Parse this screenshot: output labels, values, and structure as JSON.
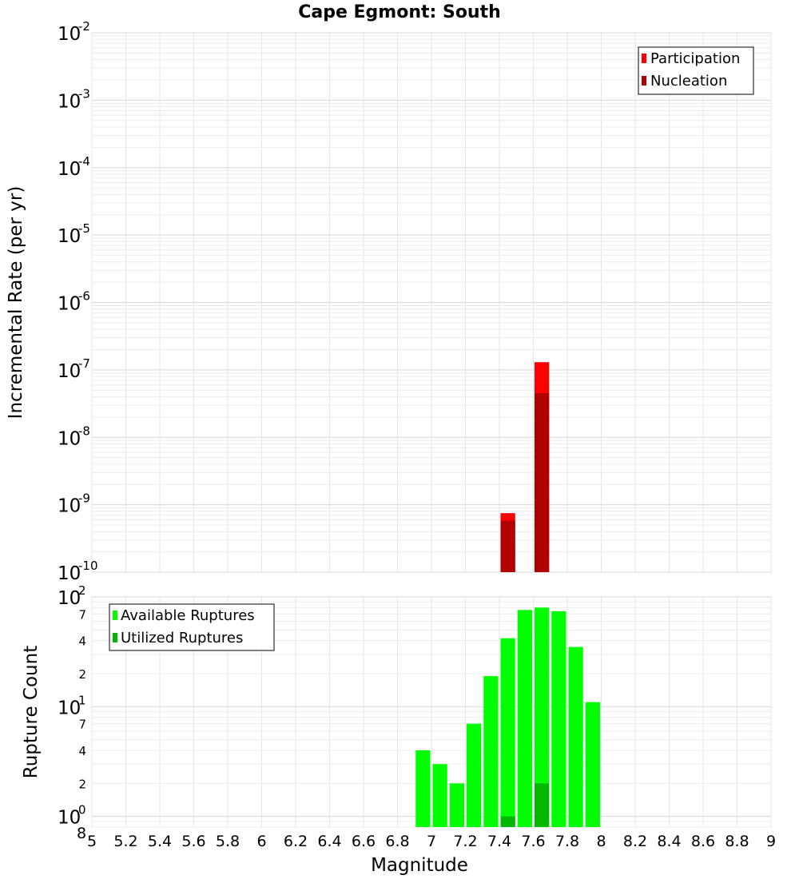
{
  "chart_data": [
    {
      "type": "bar",
      "title": "Cape Egmont: South",
      "xlabel": "Magnitude",
      "ylabel": "Incremental Rate (per yr)",
      "yscale": "log",
      "xlim": [
        5,
        9
      ],
      "ylim": [
        1e-10,
        0.01
      ],
      "grid": true,
      "legend_position": "top-right",
      "y_ticks": [
        {
          "base": "10",
          "exp": "-10"
        },
        {
          "base": "10",
          "exp": "-9"
        },
        {
          "base": "10",
          "exp": "-8"
        },
        {
          "base": "10",
          "exp": "-7"
        },
        {
          "base": "10",
          "exp": "-6"
        },
        {
          "base": "10",
          "exp": "-5"
        },
        {
          "base": "10",
          "exp": "-4"
        },
        {
          "base": "10",
          "exp": "-3"
        },
        {
          "base": "10",
          "exp": "-2"
        }
      ],
      "bin_width": 0.1,
      "series": [
        {
          "name": "Participation",
          "color": "#ff0000",
          "points": [
            {
              "x": 7.45,
              "y": 7.5e-10
            },
            {
              "x": 7.65,
              "y": 1.3e-07
            }
          ]
        },
        {
          "name": "Nucleation",
          "color": "#b00000",
          "points": [
            {
              "x": 7.45,
              "y": 5.8e-10
            },
            {
              "x": 7.65,
              "y": 4.5e-08
            }
          ]
        }
      ]
    },
    {
      "type": "bar",
      "xlabel": "Magnitude",
      "ylabel": "Rupture Count",
      "yscale": "log",
      "xlim": [
        5,
        9
      ],
      "ylim": [
        0.8,
        100
      ],
      "grid": true,
      "legend_position": "top-left",
      "x_ticks": [
        "5",
        "5.2",
        "5.4",
        "5.6",
        "5.8",
        "6",
        "6.2",
        "6.4",
        "6.6",
        "6.8",
        "7",
        "7.2",
        "7.4",
        "7.6",
        "7.8",
        "8",
        "8.2",
        "8.4",
        "8.6",
        "8.8",
        "9"
      ],
      "y_major_ticks": [
        {
          "base": "10",
          "exp": "0"
        },
        {
          "base": "10",
          "exp": "1"
        },
        {
          "base": "10",
          "exp": "2"
        }
      ],
      "y_minor_ticks": [
        "8",
        "2",
        "4",
        "7",
        "2",
        "4",
        "7"
      ],
      "bin_width": 0.1,
      "series": [
        {
          "name": "Available Ruptures",
          "color": "#00ff00",
          "points": [
            {
              "x": 6.95,
              "y": 4
            },
            {
              "x": 7.05,
              "y": 3
            },
            {
              "x": 7.15,
              "y": 2
            },
            {
              "x": 7.25,
              "y": 7
            },
            {
              "x": 7.35,
              "y": 19
            },
            {
              "x": 7.45,
              "y": 42
            },
            {
              "x": 7.55,
              "y": 76
            },
            {
              "x": 7.65,
              "y": 80
            },
            {
              "x": 7.75,
              "y": 74
            },
            {
              "x": 7.85,
              "y": 35
            },
            {
              "x": 7.95,
              "y": 11
            }
          ]
        },
        {
          "name": "Utilized Ruptures",
          "color": "#00b800",
          "points": [
            {
              "x": 7.45,
              "y": 1
            },
            {
              "x": 7.65,
              "y": 2
            }
          ]
        }
      ]
    }
  ]
}
